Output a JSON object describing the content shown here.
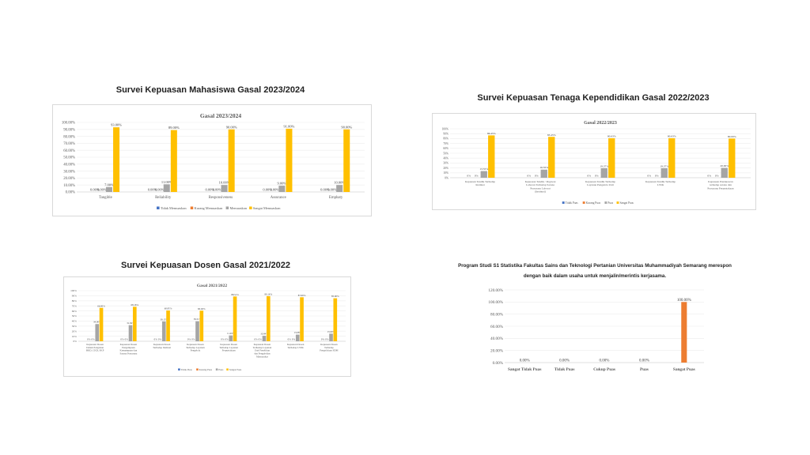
{
  "headings": {
    "mhs": "Survei Kepuasan Mahasiswa Gasal 2023/2024",
    "tendik": "Survei Kepuasan Tenaga Kependidikan Gasal 2022/2023",
    "dosen": "Survei Kepuasan Dosen Gasal 2021/2022",
    "mitra_line1": "Program Studi S1 Statistika Fakultas Sains dan Teknologi Pertanian Universitas Muhammadiyah Semarang merespon",
    "mitra_line2": "dengan baik dalam usaha untuk menjalin/merintis kerjasama."
  },
  "colors": {
    "series1": "#4472c4",
    "series2": "#ed7d31",
    "series3": "#a5a5a5",
    "series4": "#ffc000",
    "orange_bar": "#ed7d31"
  },
  "chart_data": [
    {
      "id": "mhs",
      "type": "bar",
      "title": "Gasal  2023/2024",
      "categories": [
        "Tangible",
        "Reliability",
        "Responsiveness",
        "Assurance",
        "Emphaty"
      ],
      "series": [
        {
          "name": "Tidak Memuaskan",
          "values": [
            0,
            0,
            0,
            0,
            0
          ],
          "labels": [
            "0.00%",
            "0.00%",
            "0.00%",
            "0.00%",
            "0.00%"
          ]
        },
        {
          "name": "Kurang Memuaskan",
          "values": [
            0,
            0,
            0,
            0,
            0
          ],
          "labels": [
            "0.00%",
            "0.00%",
            "0.00%",
            "0.00%",
            "0.00%"
          ]
        },
        {
          "name": "Memuaskan",
          "values": [
            7,
            11,
            10,
            9,
            10
          ],
          "labels": [
            "7.00%",
            "11.00%",
            "10.00%",
            "9.00%",
            "10.00%"
          ]
        },
        {
          "name": "Sangat Memuaskan",
          "values": [
            93,
            89,
            90,
            91,
            90
          ],
          "labels": [
            "93.00%",
            "89.00%",
            "90.00%",
            "91.00%",
            "90.00%"
          ]
        }
      ],
      "yticks": [
        "0.00%",
        "10.00%",
        "20.00%",
        "30.00%",
        "40.00%",
        "50.00%",
        "60.00%",
        "70.00%",
        "80.00%",
        "90.00%",
        "100.00%"
      ],
      "ylim": [
        0,
        100
      ],
      "legend": "bottom"
    },
    {
      "id": "tendik",
      "type": "bar",
      "title": "Gasal  2022/2023",
      "categories": [
        "Kepuasan Tendik Terhadap Institusi",
        "Kepuasan Tendik / Pegawai Laboran Terhadap Sarana Prasarana Laborat (Institusi)",
        "Kepuasan Tendik Terhadap Layanan Pengelola Unit",
        "Kepuasan Tendik Terhadap LSSK",
        "Kepuasan Pustakawan terhadap sarana dan Prasarana Perpustakaan"
      ],
      "series": [
        {
          "name": "Tidak Puas",
          "values": [
            0,
            0,
            0,
            0,
            0
          ],
          "labels": [
            "0%",
            "0%",
            "0%",
            "0%",
            "0%"
          ]
        },
        {
          "name": "Kurang Puas",
          "values": [
            0,
            0,
            0,
            0,
            0
          ],
          "labels": [
            "0%",
            "0%",
            "0%",
            "0%",
            "0%"
          ]
        },
        {
          "name": "Puas",
          "values": [
            13.55,
            16.55,
            19.37,
            19.37,
            20
          ],
          "labels": [
            "13.55%",
            "16.55%",
            "19.37%",
            "19.37%",
            "20.00%"
          ]
        },
        {
          "name": "Sangat Puas",
          "values": [
            86.45,
            83.45,
            80.63,
            80.63,
            80
          ],
          "labels": [
            "86.45%",
            "83.45%",
            "80.63%",
            "80.63%",
            "80.00%"
          ]
        }
      ],
      "yticks": [
        "0%",
        "10%",
        "20%",
        "30%",
        "40%",
        "50%",
        "60%",
        "70%",
        "80%",
        "90%",
        "100%"
      ],
      "ylim": [
        0,
        100
      ],
      "legend": "bottom"
    },
    {
      "id": "dosen",
      "type": "bar",
      "title": "Gasal 2021/2022",
      "categories": [
        "Kepuasan Dosen Dalam Pengisian BKD, CKD, SKP",
        "Kepuasan Dosen Pengampuan Kemampuan dan Sarana Prasarana",
        "Kepuasan Dosen Terhadap Institusi",
        "Kepuasan Dosen Terhadap Layanan Pengelola",
        "Kepuasan Dosen Terhadap Layanan Perpustakaan",
        "Kepuasan Dosen Terhadap Layanan Unit Penelitian dan Pengabdian Masyarakat",
        "Kepuasan Dosen Terhadap LSSK",
        "Kepuasan Dosen Terhadap Pengelolaan SDM"
      ],
      "series": [
        {
          "name": "Tidak Puas",
          "values": [
            0,
            0,
            0,
            0,
            0,
            0,
            0,
            0
          ],
          "labels": [
            "0%",
            "0%",
            "0%",
            "0%",
            "0%",
            "0%",
            "0%",
            "0%"
          ]
        },
        {
          "name": "Kurang Puas",
          "values": [
            0,
            0,
            0,
            0,
            0,
            0,
            0,
            0
          ],
          "labels": [
            "0%",
            "0%",
            "0%",
            "0%",
            "0%",
            "0%",
            "0%",
            "0%"
          ]
        },
        {
          "name": "Puas",
          "values": [
            34,
            31.84,
            39.15,
            39.51,
            11.49,
            10.84,
            13.08,
            15
          ],
          "labels": [
            "34.00%",
            "31.84%",
            "39.15%",
            "39.51%",
            "11.49%",
            "10.84%",
            "13.08%",
            "15.00%"
          ]
        },
        {
          "name": "Sangat Puas",
          "values": [
            66,
            68.16,
            60.85,
            60.49,
            88.51,
            89.16,
            87,
            85
          ],
          "labels": [
            "66.00%",
            "68.16%",
            "60.85%",
            "60.49%",
            "88.51%",
            "89.16%",
            "87.00%",
            "85.00%"
          ]
        }
      ],
      "yticks": [
        "0%",
        "10%",
        "20%",
        "30%",
        "40%",
        "50%",
        "60%",
        "70%",
        "80%",
        "90%",
        "100%"
      ],
      "ylim": [
        0,
        100
      ],
      "legend": "bottom"
    },
    {
      "id": "mitra",
      "type": "bar",
      "title": "",
      "categories": [
        "Sangat Tidak Puas",
        "Tidak Puas",
        "Cukup Puas",
        "Puas",
        "Sangat Puas"
      ],
      "series": [
        {
          "name": "",
          "values": [
            0,
            0,
            0,
            0,
            100
          ],
          "labels": [
            "0.00%",
            "0.00%",
            "0.00%",
            "0.00%",
            "100.00%"
          ]
        }
      ],
      "yticks": [
        "0.00%",
        "20.00%",
        "40.00%",
        "60.00%",
        "80.00%",
        "100.00%",
        "120.00%"
      ],
      "ylim": [
        0,
        120
      ],
      "legend": "none"
    }
  ]
}
